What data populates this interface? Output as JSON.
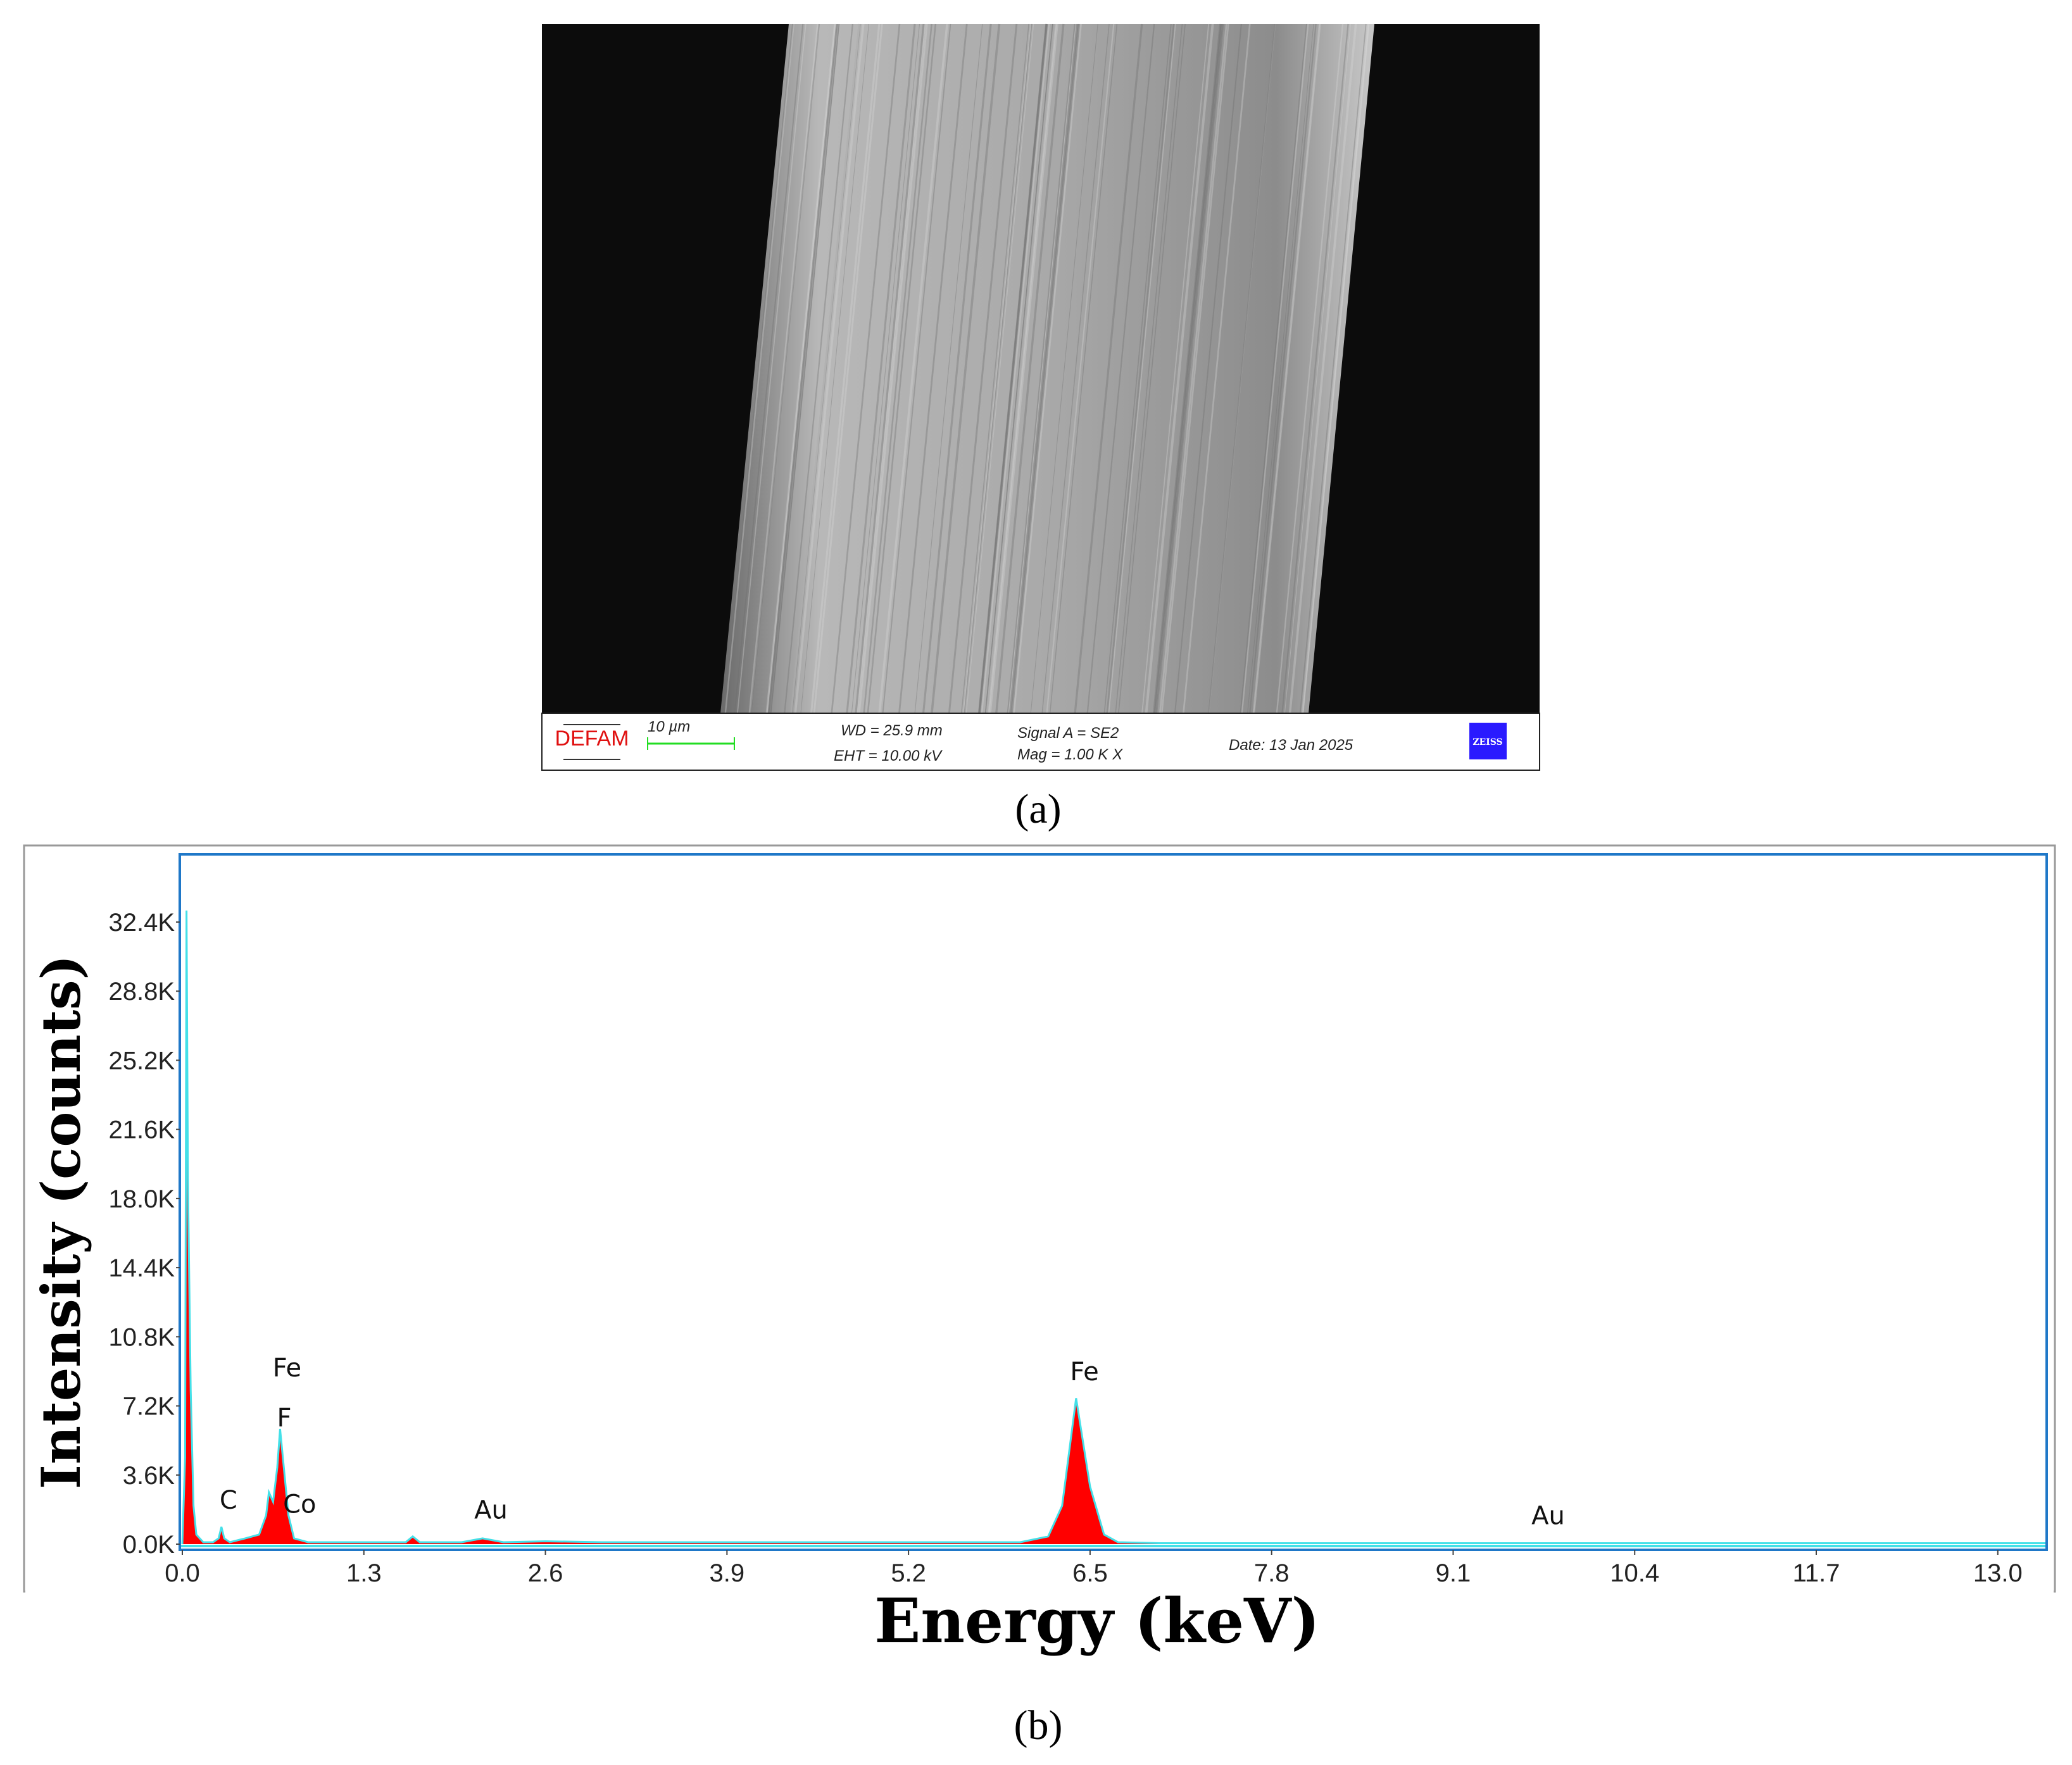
{
  "panel_a": {
    "label": "(a)",
    "info_bar": {
      "logo_text": "DEFAM",
      "scale_bar_label": "10 µm",
      "wd": "WD = 25.9 mm",
      "eht": "EHT = 10.00 kV",
      "signal": "Signal A = SE2",
      "mag": "Mag =    1.00 K X",
      "date": "Date: 13 Jan 2025",
      "brand_logo_text": "ZEISS",
      "scale_bar_color": "#22dd22",
      "brand_logo_color": "#2a1aff"
    }
  },
  "panel_b": {
    "label": "(b)"
  },
  "chart_data": {
    "type": "area",
    "title": "",
    "xlabel": "Energy (keV)",
    "ylabel": "Intensity (counts)",
    "xlim": [
      0,
      13.35
    ],
    "ylim": [
      -300,
      35900
    ],
    "xticks": [
      0.0,
      1.3,
      2.6,
      3.9,
      5.2,
      6.5,
      7.8,
      9.1,
      10.4,
      11.7,
      13.0
    ],
    "xtick_labels": [
      "0.0",
      "1.3",
      "2.6",
      "3.9",
      "5.2",
      "6.5",
      "7.8",
      "9.1",
      "10.4",
      "11.7",
      "13.0"
    ],
    "yticks": [
      0,
      3600,
      7200,
      10800,
      14400,
      18000,
      21600,
      25200,
      28800,
      32400
    ],
    "ytick_labels": [
      "0.0K",
      "3.6K",
      "7.2K",
      "10.8K",
      "14.4K",
      "18.0K",
      "21.6K",
      "25.2K",
      "28.8K",
      "32.4K"
    ],
    "grid": false,
    "colors": {
      "fill": "#ff0000",
      "outline": "#44e0e8",
      "background_fill": "#5a1aa0",
      "frame": "#1f78c8"
    },
    "series": [
      {
        "x": [
          0,
          0.02,
          0.03,
          0.04,
          0.06,
          0.08,
          0.1,
          0.15,
          0.22,
          0.26,
          0.28,
          0.3,
          0.34,
          0.45,
          0.55,
          0.6,
          0.62,
          0.65,
          0.68,
          0.7,
          0.72,
          0.76,
          0.8,
          0.9,
          1.2,
          1.6,
          1.65,
          1.7,
          2.0,
          2.15,
          2.3,
          2.6,
          3.0,
          4.0,
          5.0,
          5.3,
          6.0,
          6.2,
          6.3,
          6.4,
          6.5,
          6.6,
          6.7,
          7.0,
          8.0,
          10.0,
          13.0,
          13.35
        ],
        "y": [
          0,
          4500,
          33000,
          19000,
          8000,
          2000,
          500,
          100,
          100,
          300,
          900,
          300,
          100,
          300,
          500,
          1500,
          2700,
          2200,
          4000,
          6000,
          4500,
          1500,
          300,
          100,
          100,
          100,
          400,
          100,
          100,
          300,
          100,
          150,
          100,
          100,
          100,
          100,
          100,
          400,
          2000,
          7600,
          3000,
          500,
          100,
          50,
          50,
          50,
          50,
          50
        ]
      }
    ],
    "annotations": [
      {
        "text": "Fe",
        "x": 0.75,
        "y": 9200
      },
      {
        "text": "F",
        "x": 0.73,
        "y": 6600
      },
      {
        "text": "C",
        "x": 0.33,
        "y": 2300
      },
      {
        "text": "Co",
        "x": 0.84,
        "y": 2100
      },
      {
        "text": "Au",
        "x": 2.21,
        "y": 1800
      },
      {
        "text": "Fe",
        "x": 6.46,
        "y": 9000
      },
      {
        "text": "Au",
        "x": 9.78,
        "y": 1500
      }
    ]
  }
}
